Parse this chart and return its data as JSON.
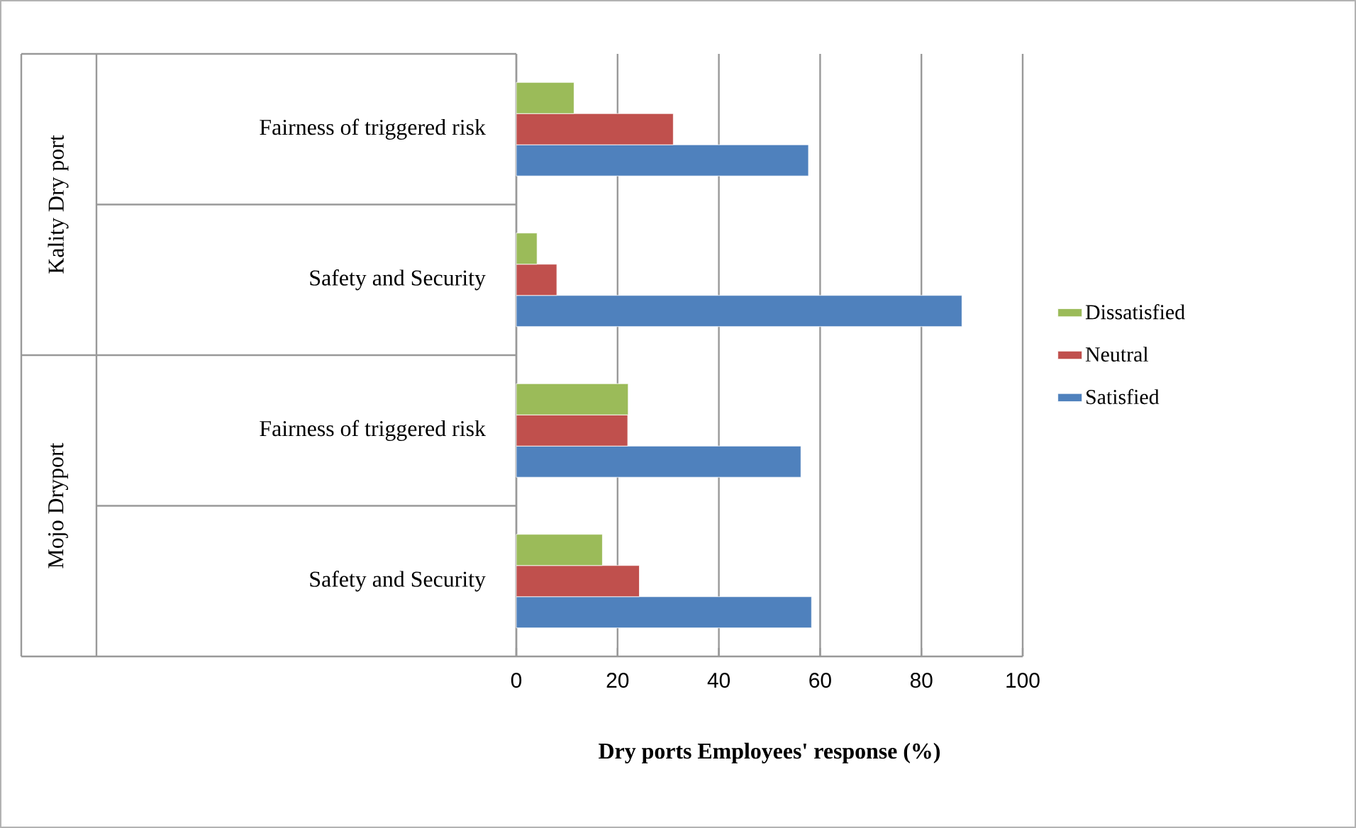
{
  "chart_data": {
    "type": "bar",
    "orientation": "horizontal",
    "xlabel": "Dry ports Employees' response (%)",
    "categories": [
      "Fairness of triggered risk",
      "Safety and Security",
      "Fairness of triggered risk",
      "Safety and Security"
    ],
    "annotations": [
      "Kality Dry port",
      "Mojo Dryport"
    ],
    "series": [
      {
        "name": "Satisfied",
        "color": "#4f81bd",
        "values": [
          57.7,
          88,
          56.2,
          58.3
        ]
      },
      {
        "name": "Neutral",
        "color": "#c0504d",
        "values": [
          31,
          8,
          22,
          24.3
        ]
      },
      {
        "name": "Dissatisfied",
        "color": "#9bbb59",
        "values": [
          11.4,
          4.1,
          22.1,
          17
        ]
      }
    ],
    "xlim": [
      0,
      100
    ],
    "xticks": [
      0,
      20,
      40,
      60,
      80,
      100
    ],
    "grid": "x",
    "legend": "right"
  }
}
